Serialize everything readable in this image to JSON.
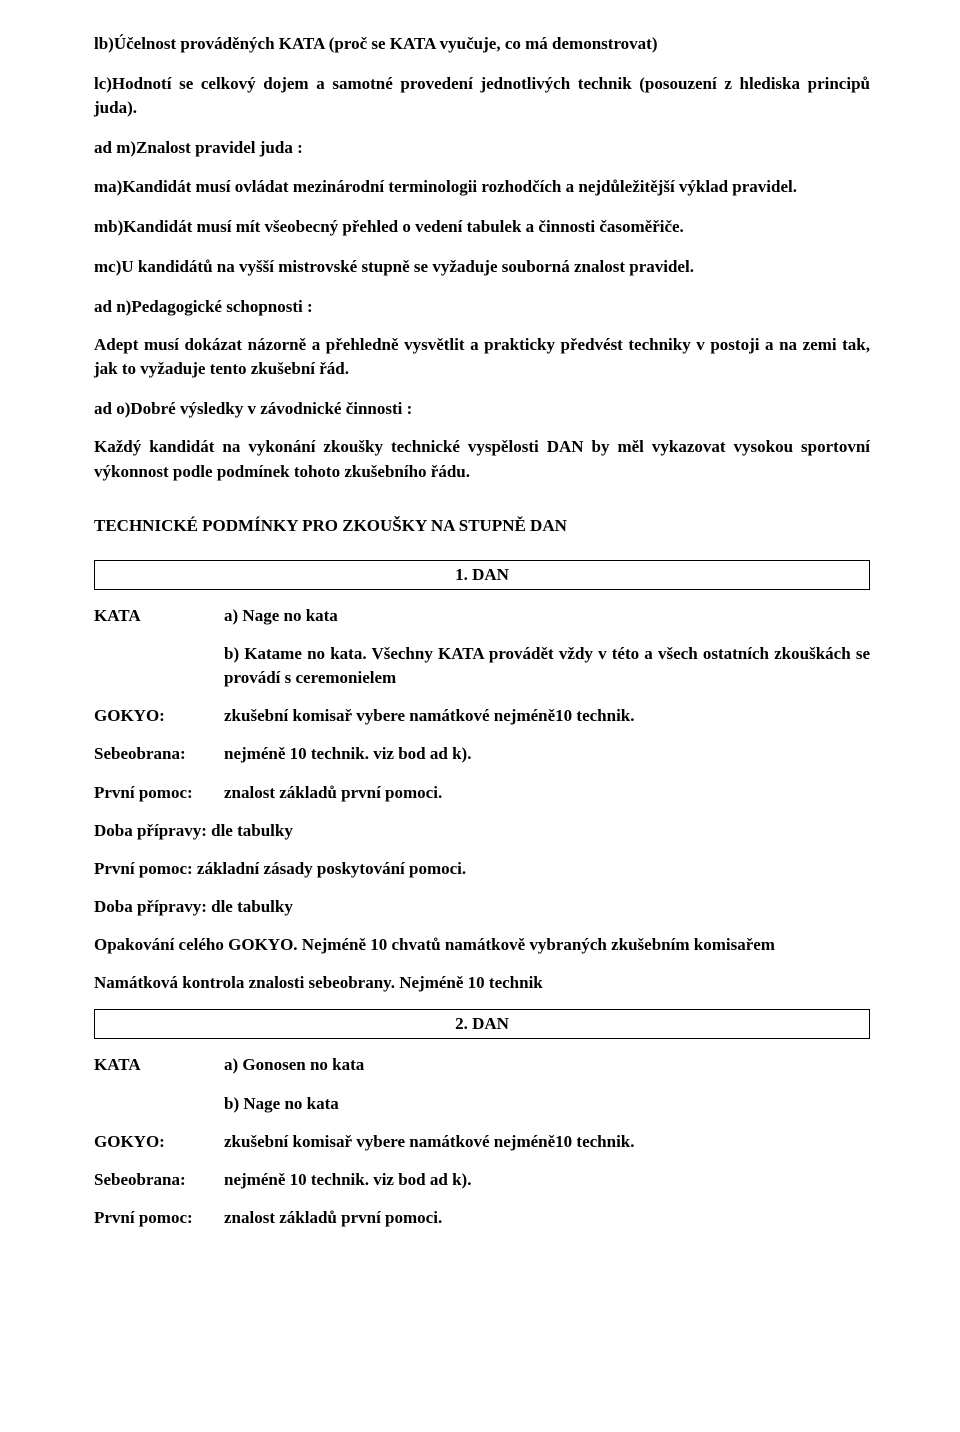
{
  "p1": "lb)Účelnost prováděných KATA (proč se KATA vyučuje, co má demonstrovat)",
  "p2": "lc)Hodnotí se celkový dojem a samotné provedení jednotlivých technik (posouzení z hlediska principů juda).",
  "p3": "ad m)Znalost pravidel juda :",
  "p4": "ma)Kandidát musí ovládat mezinárodní terminologii rozhodčích a nejdůležitější výklad pravidel.",
  "p5": "mb)Kandidát musí mít všeobecný přehled o vedení tabulek a činnosti časoměřiče.",
  "p6": "mc)U kandidátů na vyšší mistrovské stupně se vyžaduje souborná znalost pravidel.",
  "p7": "ad n)Pedagogické schopnosti :",
  "p8": "Adept musí dokázat názorně a přehledně vysvětlit a prakticky předvést techniky v postoji a na zemi tak, jak to vyžaduje tento zkušební řád.",
  "p9": "ad o)Dobré výsledky v závodnické činnosti :",
  "p10": "Každý kandidát na vykonání  zkoušky technické vyspělosti DAN by měl vykazovat vysokou sportovní výkonnost podle podmínek tohoto zkušebního řádu.",
  "sectionTitle": "TECHNICKÉ  PODMÍNKY  PRO  ZKOUŠKY  NA  STUPNĚ  DAN",
  "dan1": {
    "heading": "1. DAN",
    "kataLabel": "KATA",
    "kataA": "a) Nage no kata",
    "kataB": "b)  Katame  no  kata.  Všechny  KATA  provádět  vždy  v této  a  všech  ostatních zkouškách se provádí s ceremonielem",
    "gokyoLabel": "GOKYO:",
    "gokyoVal": "zkušební komisař vybere namátkové nejméně10 technik.",
    "seboLabel": "Sebeobrana:",
    "seboVal": "nejméně 10 technik. viz bod ad k).",
    "ppLabel": "První pomoc:",
    "ppVal": "znalost základů první pomoci.",
    "doba1": "Doba přípravy: dle tabulky",
    "pp2": "První pomoc: základní zásady poskytování pomoci.",
    "doba2": "Doba přípravy: dle tabulky",
    "opak": "Opakování celého GOKYO. Nejméně 10 chvatů namátkově vybraných zkušebním komisařem",
    "namat": "Namátková kontrola znalosti sebeobrany. Nejméně 10 technik"
  },
  "dan2": {
    "heading": "2. DAN",
    "kataLabel": "KATA",
    "kataA": "a) Gonosen no kata",
    "kataB": "b) Nage no kata",
    "gokyoLabel": "GOKYO:",
    "gokyoVal": "zkušební komisař vybere namátkové nejméně10 technik.",
    "seboLabel": "Sebeobrana:",
    "seboVal": "nejméně 10 technik. viz bod ad k).",
    "ppLabel": "První pomoc:",
    "ppVal": "znalost základů první pomoci."
  }
}
